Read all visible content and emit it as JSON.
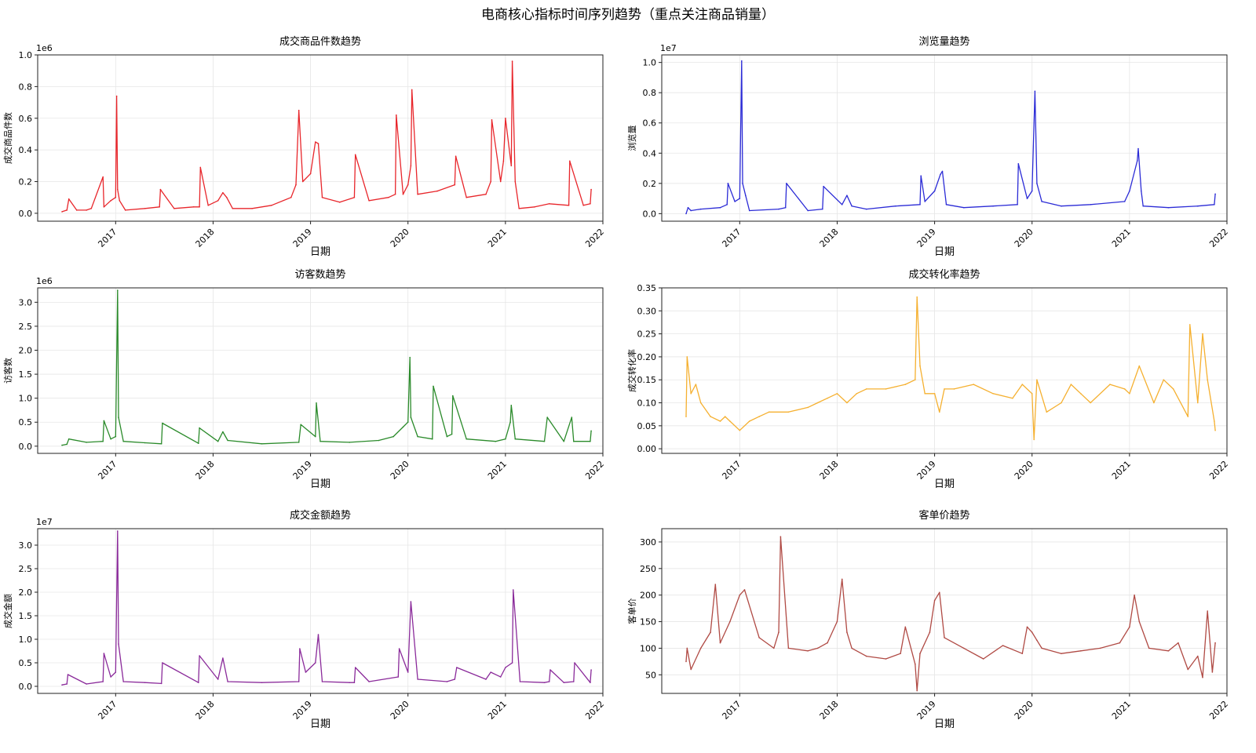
{
  "figure": {
    "title": "电商核心指标时间序列趋势（重点关注商品销量）",
    "xlabel": "日期"
  },
  "colors": {
    "red": "#e8262b",
    "blue": "#2b2bd6",
    "green": "#2a8a2a",
    "orange": "#f5b030",
    "purple": "#8a2a9a",
    "brown": "#b04a44",
    "grid": "#e6e6e6"
  },
  "chart_data": [
    {
      "type": "line",
      "title": "成交商品件数趋势",
      "xlabel": "日期",
      "ylabel": "成交商品件数",
      "multiplier": "1e6",
      "color": "red",
      "xlim": [
        2016.2,
        2022.0
      ],
      "ylim": [
        -0.05,
        1.0
      ],
      "x_ticks": [
        "2017",
        "2018",
        "2019",
        "2020",
        "2021",
        "2022"
      ],
      "y_ticks": [
        "0.0",
        "0.2",
        "0.4",
        "0.6",
        "0.8",
        "1.0"
      ],
      "y_tick_values": [
        0,
        0.2,
        0.4,
        0.6,
        0.8,
        1.0
      ],
      "x": [
        2016.45,
        2016.5,
        2016.52,
        2016.6,
        2016.7,
        2016.75,
        2016.87,
        2016.88,
        2016.95,
        2017.0,
        2017.01,
        2017.02,
        2017.04,
        2017.1,
        2017.3,
        2017.45,
        2017.46,
        2017.6,
        2017.8,
        2017.86,
        2017.87,
        2017.95,
        2018.05,
        2018.1,
        2018.14,
        2018.2,
        2018.4,
        2018.6,
        2018.8,
        2018.85,
        2018.88,
        2018.92,
        2019.0,
        2019.05,
        2019.08,
        2019.12,
        2019.3,
        2019.45,
        2019.46,
        2019.6,
        2019.8,
        2019.87,
        2019.88,
        2019.95,
        2020.0,
        2020.03,
        2020.04,
        2020.1,
        2020.3,
        2020.48,
        2020.49,
        2020.6,
        2020.8,
        2020.85,
        2020.86,
        2020.95,
        2020.98,
        2021.0,
        2021.06,
        2021.07,
        2021.1,
        2021.14,
        2021.3,
        2021.45,
        2021.65,
        2021.66,
        2021.8,
        2021.87,
        2021.88
      ],
      "y": [
        0.01,
        0.02,
        0.09,
        0.02,
        0.02,
        0.03,
        0.23,
        0.04,
        0.08,
        0.1,
        0.74,
        0.15,
        0.08,
        0.02,
        0.03,
        0.04,
        0.15,
        0.03,
        0.04,
        0.04,
        0.29,
        0.05,
        0.08,
        0.13,
        0.1,
        0.03,
        0.03,
        0.05,
        0.1,
        0.18,
        0.65,
        0.2,
        0.25,
        0.45,
        0.44,
        0.1,
        0.07,
        0.1,
        0.37,
        0.08,
        0.1,
        0.12,
        0.62,
        0.12,
        0.18,
        0.3,
        0.78,
        0.12,
        0.14,
        0.18,
        0.36,
        0.1,
        0.12,
        0.2,
        0.59,
        0.2,
        0.33,
        0.6,
        0.3,
        0.96,
        0.2,
        0.03,
        0.04,
        0.06,
        0.05,
        0.33,
        0.05,
        0.06,
        0.15
      ]
    },
    {
      "type": "line",
      "title": "浏览量趋势",
      "xlabel": "日期",
      "ylabel": "浏览量",
      "multiplier": "1e7",
      "color": "blue",
      "xlim": [
        2016.2,
        2022.0
      ],
      "ylim": [
        -0.05,
        1.05
      ],
      "x_ticks": [
        "2017",
        "2018",
        "2019",
        "2020",
        "2021",
        "2022"
      ],
      "y_ticks": [
        "0.0",
        "0.2",
        "0.4",
        "0.6",
        "0.8",
        "1.0"
      ],
      "y_tick_values": [
        0,
        0.2,
        0.4,
        0.6,
        0.8,
        1.0
      ],
      "x": [
        2016.45,
        2016.47,
        2016.5,
        2016.6,
        2016.8,
        2016.87,
        2016.88,
        2016.95,
        2017.0,
        2017.02,
        2017.03,
        2017.06,
        2017.1,
        2017.4,
        2017.47,
        2017.48,
        2017.7,
        2017.85,
        2017.86,
        2018.05,
        2018.1,
        2018.15,
        2018.3,
        2018.6,
        2018.85,
        2018.86,
        2018.9,
        2019.0,
        2019.06,
        2019.08,
        2019.12,
        2019.3,
        2019.6,
        2019.85,
        2019.86,
        2019.95,
        2020.0,
        2020.03,
        2020.05,
        2020.1,
        2020.3,
        2020.6,
        2020.95,
        2021.0,
        2021.08,
        2021.09,
        2021.12,
        2021.14,
        2021.4,
        2021.7,
        2021.87,
        2021.88
      ],
      "y": [
        0.0,
        0.04,
        0.02,
        0.03,
        0.04,
        0.06,
        0.2,
        0.08,
        0.1,
        1.01,
        0.2,
        0.12,
        0.02,
        0.03,
        0.04,
        0.2,
        0.02,
        0.03,
        0.18,
        0.06,
        0.12,
        0.05,
        0.03,
        0.05,
        0.06,
        0.25,
        0.08,
        0.15,
        0.26,
        0.28,
        0.06,
        0.04,
        0.05,
        0.06,
        0.33,
        0.1,
        0.15,
        0.81,
        0.2,
        0.08,
        0.05,
        0.06,
        0.08,
        0.15,
        0.35,
        0.43,
        0.15,
        0.05,
        0.04,
        0.05,
        0.06,
        0.13
      ]
    },
    {
      "type": "line",
      "title": "访客数趋势",
      "xlabel": "日期",
      "ylabel": "访客数",
      "multiplier": "1e6",
      "color": "green",
      "xlim": [
        2016.2,
        2022.0
      ],
      "ylim": [
        -0.15,
        3.3
      ],
      "x_ticks": [
        "2017",
        "2018",
        "2019",
        "2020",
        "2021",
        "2022"
      ],
      "y_ticks": [
        "0.0",
        "0.5",
        "1.0",
        "1.5",
        "2.0",
        "2.5",
        "3.0"
      ],
      "y_tick_values": [
        0,
        0.5,
        1.0,
        1.5,
        2.0,
        2.5,
        3.0
      ],
      "x": [
        2016.45,
        2016.5,
        2016.52,
        2016.7,
        2016.87,
        2016.88,
        2016.95,
        2017.0,
        2017.02,
        2017.03,
        2017.08,
        2017.3,
        2017.47,
        2017.48,
        2017.85,
        2017.86,
        2018.05,
        2018.1,
        2018.15,
        2018.5,
        2018.88,
        2018.9,
        2019.05,
        2019.06,
        2019.1,
        2019.4,
        2019.7,
        2019.85,
        2019.95,
        2020.0,
        2020.02,
        2020.03,
        2020.1,
        2020.25,
        2020.26,
        2020.4,
        2020.45,
        2020.46,
        2020.6,
        2020.9,
        2021.0,
        2021.05,
        2021.06,
        2021.1,
        2021.4,
        2021.43,
        2021.6,
        2021.68,
        2021.7,
        2021.87,
        2021.88
      ],
      "y": [
        0.02,
        0.04,
        0.15,
        0.08,
        0.1,
        0.53,
        0.15,
        0.2,
        3.25,
        0.6,
        0.1,
        0.07,
        0.05,
        0.48,
        0.06,
        0.38,
        0.1,
        0.3,
        0.12,
        0.05,
        0.08,
        0.45,
        0.2,
        0.9,
        0.1,
        0.08,
        0.12,
        0.2,
        0.4,
        0.5,
        1.85,
        0.6,
        0.2,
        0.15,
        1.25,
        0.2,
        0.25,
        1.05,
        0.15,
        0.1,
        0.15,
        0.5,
        0.85,
        0.15,
        0.1,
        0.6,
        0.1,
        0.6,
        0.1,
        0.1,
        0.32
      ]
    },
    {
      "type": "line",
      "title": "成交转化率趋势",
      "xlabel": "日期",
      "ylabel": "成交转化率",
      "multiplier": "",
      "color": "orange",
      "xlim": [
        2016.2,
        2022.0
      ],
      "ylim": [
        -0.01,
        0.35
      ],
      "x_ticks": [
        "2017",
        "2018",
        "2019",
        "2020",
        "2021",
        "2022"
      ],
      "y_ticks": [
        "0.00",
        "0.05",
        "0.10",
        "0.15",
        "0.20",
        "0.25",
        "0.30",
        "0.35"
      ],
      "y_tick_values": [
        0,
        0.05,
        0.1,
        0.15,
        0.2,
        0.25,
        0.3,
        0.35
      ],
      "x": [
        2016.45,
        2016.46,
        2016.5,
        2016.55,
        2016.6,
        2016.7,
        2016.8,
        2016.85,
        2016.9,
        2017.0,
        2017.1,
        2017.2,
        2017.3,
        2017.5,
        2017.7,
        2017.8,
        2017.9,
        2018.0,
        2018.1,
        2018.2,
        2018.3,
        2018.5,
        2018.7,
        2018.8,
        2018.82,
        2018.85,
        2018.9,
        2019.0,
        2019.05,
        2019.1,
        2019.2,
        2019.4,
        2019.6,
        2019.8,
        2019.9,
        2020.0,
        2020.02,
        2020.05,
        2020.15,
        2020.3,
        2020.4,
        2020.5,
        2020.6,
        2020.8,
        2020.95,
        2021.0,
        2021.1,
        2021.25,
        2021.35,
        2021.45,
        2021.6,
        2021.62,
        2021.7,
        2021.75,
        2021.8,
        2021.87,
        2021.88
      ],
      "y": [
        0.07,
        0.2,
        0.12,
        0.14,
        0.1,
        0.07,
        0.06,
        0.07,
        0.06,
        0.04,
        0.06,
        0.07,
        0.08,
        0.08,
        0.09,
        0.1,
        0.11,
        0.12,
        0.1,
        0.12,
        0.13,
        0.13,
        0.14,
        0.15,
        0.33,
        0.18,
        0.12,
        0.12,
        0.08,
        0.13,
        0.13,
        0.14,
        0.12,
        0.11,
        0.14,
        0.12,
        0.02,
        0.15,
        0.08,
        0.1,
        0.14,
        0.12,
        0.1,
        0.14,
        0.13,
        0.12,
        0.18,
        0.1,
        0.15,
        0.13,
        0.07,
        0.27,
        0.1,
        0.25,
        0.15,
        0.06,
        0.04
      ]
    },
    {
      "type": "line",
      "title": "成交金额趋势",
      "xlabel": "日期",
      "ylabel": "成交金额",
      "multiplier": "1e7",
      "color": "purple",
      "xlim": [
        2016.2,
        2022.0
      ],
      "ylim": [
        -0.15,
        3.35
      ],
      "x_ticks": [
        "2017",
        "2018",
        "2019",
        "2020",
        "2021",
        "2022"
      ],
      "y_ticks": [
        "0.0",
        "0.5",
        "1.0",
        "1.5",
        "2.0",
        "2.5",
        "3.0"
      ],
      "y_tick_values": [
        0,
        0.5,
        1.0,
        1.5,
        2.0,
        2.5,
        3.0
      ],
      "x": [
        2016.45,
        2016.5,
        2016.51,
        2016.7,
        2016.87,
        2016.88,
        2016.95,
        2017.0,
        2017.02,
        2017.03,
        2017.08,
        2017.3,
        2017.47,
        2017.48,
        2017.85,
        2017.86,
        2018.05,
        2018.1,
        2018.15,
        2018.5,
        2018.88,
        2018.89,
        2018.95,
        2019.05,
        2019.08,
        2019.12,
        2019.4,
        2019.45,
        2019.46,
        2019.6,
        2019.9,
        2019.91,
        2020.0,
        2020.03,
        2020.1,
        2020.4,
        2020.48,
        2020.5,
        2020.8,
        2020.85,
        2020.95,
        2021.0,
        2021.07,
        2021.08,
        2021.15,
        2021.4,
        2021.45,
        2021.46,
        2021.6,
        2021.7,
        2021.71,
        2021.87,
        2021.88
      ],
      "y": [
        0.03,
        0.05,
        0.25,
        0.05,
        0.1,
        0.7,
        0.2,
        0.3,
        3.3,
        0.9,
        0.1,
        0.08,
        0.06,
        0.5,
        0.08,
        0.65,
        0.15,
        0.6,
        0.1,
        0.08,
        0.1,
        0.8,
        0.3,
        0.5,
        1.1,
        0.1,
        0.08,
        0.08,
        0.4,
        0.1,
        0.2,
        0.8,
        0.3,
        1.8,
        0.15,
        0.1,
        0.15,
        0.4,
        0.15,
        0.3,
        0.2,
        0.4,
        0.5,
        2.05,
        0.1,
        0.08,
        0.1,
        0.35,
        0.08,
        0.1,
        0.5,
        0.08,
        0.35
      ]
    },
    {
      "type": "line",
      "title": "客单价趋势",
      "xlabel": "日期",
      "ylabel": "客单价",
      "multiplier": "",
      "color": "brown",
      "xlim": [
        2016.2,
        2022.0
      ],
      "ylim": [
        15,
        325
      ],
      "x_ticks": [
        "2017",
        "2018",
        "2019",
        "2020",
        "2021",
        "2022"
      ],
      "y_ticks": [
        "50",
        "100",
        "150",
        "200",
        "250",
        "300"
      ],
      "y_tick_values": [
        50,
        100,
        150,
        200,
        250,
        300
      ],
      "x": [
        2016.45,
        2016.46,
        2016.5,
        2016.6,
        2016.7,
        2016.75,
        2016.8,
        2016.9,
        2017.0,
        2017.05,
        2017.2,
        2017.35,
        2017.4,
        2017.42,
        2017.5,
        2017.7,
        2017.8,
        2017.9,
        2018.0,
        2018.05,
        2018.1,
        2018.15,
        2018.3,
        2018.5,
        2018.65,
        2018.7,
        2018.8,
        2018.82,
        2018.85,
        2018.95,
        2019.0,
        2019.05,
        2019.1,
        2019.3,
        2019.5,
        2019.7,
        2019.9,
        2019.95,
        2020.0,
        2020.05,
        2020.1,
        2020.3,
        2020.5,
        2020.7,
        2020.9,
        2021.0,
        2021.05,
        2021.1,
        2021.2,
        2021.4,
        2021.5,
        2021.6,
        2021.7,
        2021.75,
        2021.8,
        2021.85,
        2021.88
      ],
      "y": [
        75,
        100,
        60,
        100,
        130,
        220,
        110,
        150,
        200,
        210,
        120,
        100,
        130,
        310,
        100,
        95,
        100,
        110,
        150,
        230,
        130,
        100,
        85,
        80,
        90,
        140,
        70,
        20,
        90,
        130,
        190,
        205,
        120,
        100,
        80,
        105,
        90,
        140,
        130,
        115,
        100,
        90,
        95,
        100,
        110,
        140,
        200,
        150,
        100,
        95,
        110,
        60,
        85,
        45,
        170,
        55,
        110
      ]
    }
  ]
}
